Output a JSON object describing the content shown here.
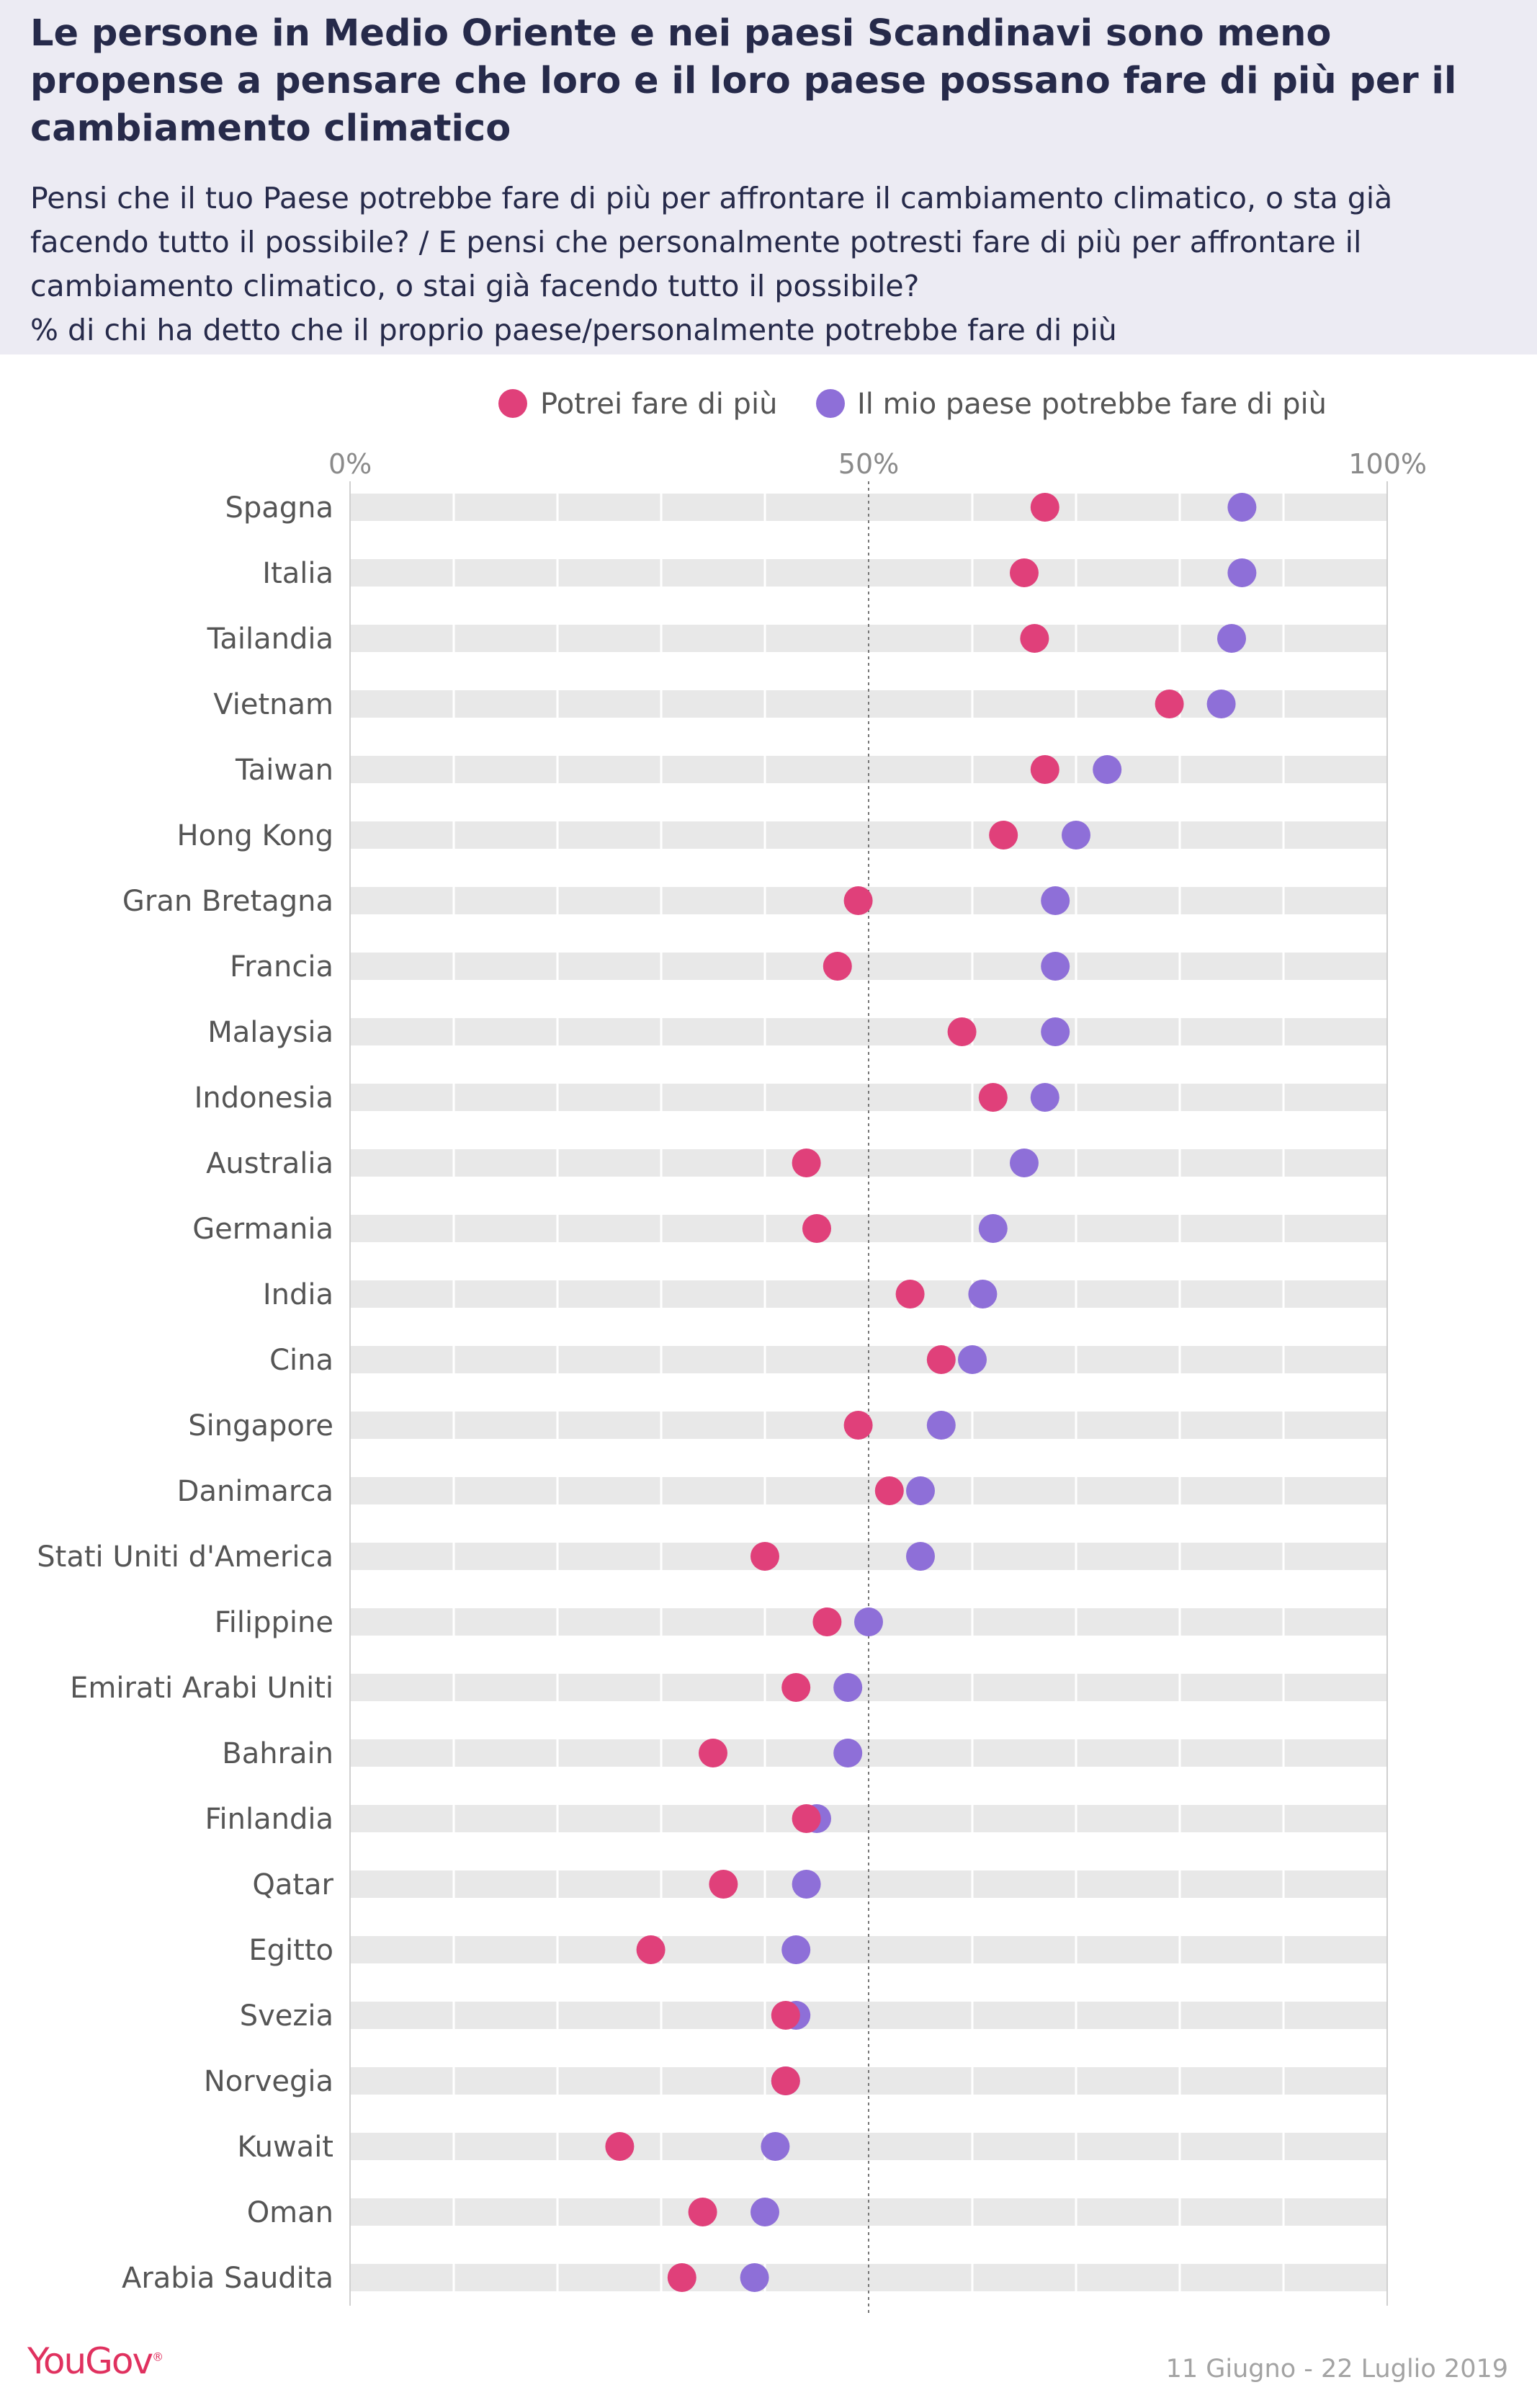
{
  "title": "Le persone in Medio Oriente e nei paesi Scandinavi sono meno propense a pensare che loro e il loro paese possano fare di più per il cambiamento climatico",
  "subtitle": "Pensi che il tuo Paese potrebbe fare di più per affrontare il cambiamento climatico, o sta già facendo tutto il possibile? / E pensi che personalmente potresti fare di più per affrontare il cambiamento climatico, o stai già facendo tutto il possibile?\n% di chi ha detto che il proprio paese/personalmente potrebbe fare di più",
  "brand": "YouGov",
  "date_range": "11 Giugno - 22 Luglio 2019",
  "chart_data": {
    "type": "scatter",
    "legend_position": "top",
    "xlim": [
      0,
      100
    ],
    "x_ticks": [
      "0%",
      "50%",
      "100%"
    ],
    "x_tick_values": [
      0,
      50,
      100
    ],
    "reference_line": 50,
    "categories": [
      "Spagna",
      "Italia",
      "Tailandia",
      "Vietnam",
      "Taiwan",
      "Hong Kong",
      "Gran Bretagna",
      "Francia",
      "Malaysia",
      "Indonesia",
      "Australia",
      "Germania",
      "India",
      "Cina",
      "Singapore",
      "Danimarca",
      "Stati Uniti d'America",
      "Filippine",
      "Emirati Arabi Uniti",
      "Bahrain",
      "Finlandia",
      "Qatar",
      "Egitto",
      "Svezia",
      "Norvegia",
      "Kuwait",
      "Oman",
      "Arabia Saudita"
    ],
    "series": [
      {
        "name": "Potrei fare di più",
        "color": "#e0407a",
        "values": [
          67,
          65,
          66,
          79,
          67,
          63,
          49,
          47,
          59,
          62,
          44,
          45,
          54,
          57,
          49,
          52,
          40,
          46,
          43,
          35,
          44,
          36,
          29,
          42,
          42,
          26,
          34,
          32
        ]
      },
      {
        "name": "Il mio paese potrebbe fare di più",
        "color": "#8e6fd8",
        "values": [
          86,
          86,
          85,
          84,
          73,
          70,
          68,
          68,
          68,
          67,
          65,
          62,
          61,
          60,
          57,
          55,
          55,
          50,
          48,
          48,
          45,
          44,
          43,
          43,
          42,
          41,
          40,
          39
        ]
      }
    ]
  }
}
